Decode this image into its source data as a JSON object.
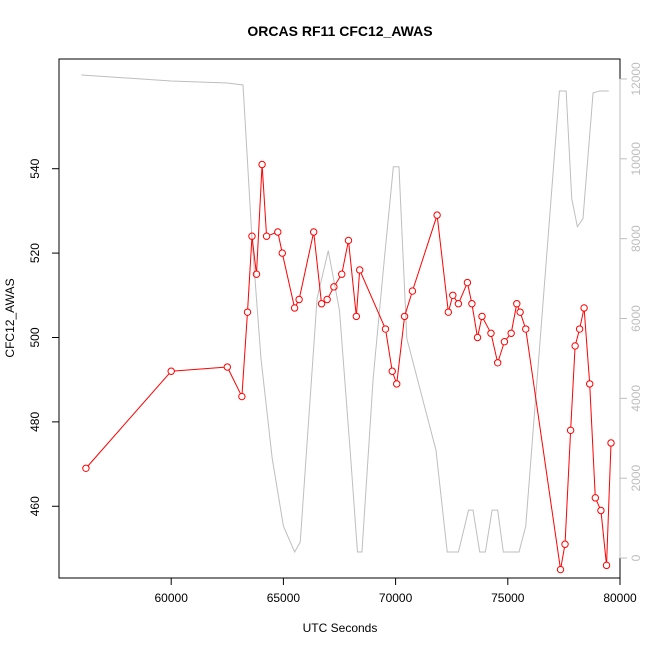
{
  "chart_data": {
    "type": "line",
    "title": "ORCAS RF11 CFC12_AWAS",
    "xlabel": "UTC Seconds",
    "ylabel": "CFC12_AWAS",
    "xlim": [
      55000,
      80000
    ],
    "ylim": [
      443,
      566
    ],
    "y2lim": [
      -500,
      12500
    ],
    "x_ticks": [
      60000,
      65000,
      70000,
      75000,
      80000
    ],
    "y_ticks": [
      460,
      480,
      500,
      520,
      540
    ],
    "y2_ticks": [
      0,
      2000,
      4000,
      6000,
      8000,
      10000,
      12000
    ],
    "grid": false,
    "series": [
      {
        "color": "#ff0000",
        "axis": "left",
        "markers": "open-circle",
        "values": [
          [
            56200,
            469
          ],
          [
            60000,
            492
          ],
          [
            62500,
            493
          ],
          [
            63150,
            486
          ],
          [
            63400,
            506
          ],
          [
            63600,
            524
          ],
          [
            63800,
            515
          ],
          [
            64050,
            541
          ],
          [
            64250,
            524
          ],
          [
            64750,
            525
          ],
          [
            64950,
            520
          ],
          [
            65500,
            507
          ],
          [
            65700,
            509
          ],
          [
            66350,
            525
          ],
          [
            66700,
            508
          ],
          [
            66950,
            509
          ],
          [
            67250,
            512
          ],
          [
            67600,
            515
          ],
          [
            67900,
            523
          ],
          [
            68250,
            505
          ],
          [
            68400,
            516
          ],
          [
            69550,
            502
          ],
          [
            69850,
            492
          ],
          [
            70050,
            489
          ],
          [
            70400,
            505
          ],
          [
            70750,
            511
          ],
          [
            71850,
            529
          ],
          [
            72350,
            506
          ],
          [
            72550,
            510
          ],
          [
            72800,
            508
          ],
          [
            73200,
            513
          ],
          [
            73400,
            508
          ],
          [
            73650,
            500
          ],
          [
            73850,
            505
          ],
          [
            74250,
            501
          ],
          [
            74550,
            494
          ],
          [
            74850,
            499
          ],
          [
            75150,
            501
          ],
          [
            75400,
            508
          ],
          [
            75550,
            506
          ],
          [
            75800,
            502
          ],
          [
            77350,
            445
          ],
          [
            77550,
            451
          ],
          [
            77800,
            478
          ],
          [
            78000,
            498
          ],
          [
            78200,
            502
          ],
          [
            78400,
            507
          ],
          [
            78650,
            489
          ],
          [
            78900,
            462
          ],
          [
            79150,
            459
          ],
          [
            79400,
            446
          ],
          [
            79600,
            475
          ]
        ]
      },
      {
        "color": "#bebebe",
        "axis": "right",
        "markers": "none",
        "values": [
          [
            56000,
            12100
          ],
          [
            60000,
            11950
          ],
          [
            62500,
            11900
          ],
          [
            63200,
            11850
          ],
          [
            63600,
            8000
          ],
          [
            64000,
            5000
          ],
          [
            64500,
            2500
          ],
          [
            65000,
            800
          ],
          [
            65500,
            150
          ],
          [
            65750,
            400
          ],
          [
            66500,
            6500
          ],
          [
            67000,
            7700
          ],
          [
            67500,
            6200
          ],
          [
            68000,
            2500
          ],
          [
            68300,
            150
          ],
          [
            68500,
            150
          ],
          [
            69000,
            4500
          ],
          [
            69500,
            7500
          ],
          [
            69900,
            9800
          ],
          [
            70150,
            9800
          ],
          [
            70500,
            5500
          ],
          [
            71800,
            2700
          ],
          [
            72300,
            150
          ],
          [
            72800,
            150
          ],
          [
            73250,
            1200
          ],
          [
            73450,
            1200
          ],
          [
            73750,
            150
          ],
          [
            74000,
            150
          ],
          [
            74300,
            1200
          ],
          [
            74550,
            1200
          ],
          [
            74800,
            150
          ],
          [
            75500,
            150
          ],
          [
            75800,
            800
          ],
          [
            77300,
            11700
          ],
          [
            77600,
            11700
          ],
          [
            77850,
            9000
          ],
          [
            78100,
            8300
          ],
          [
            78350,
            8500
          ],
          [
            78800,
            11650
          ],
          [
            79100,
            11700
          ],
          [
            79500,
            11700
          ]
        ]
      }
    ]
  }
}
